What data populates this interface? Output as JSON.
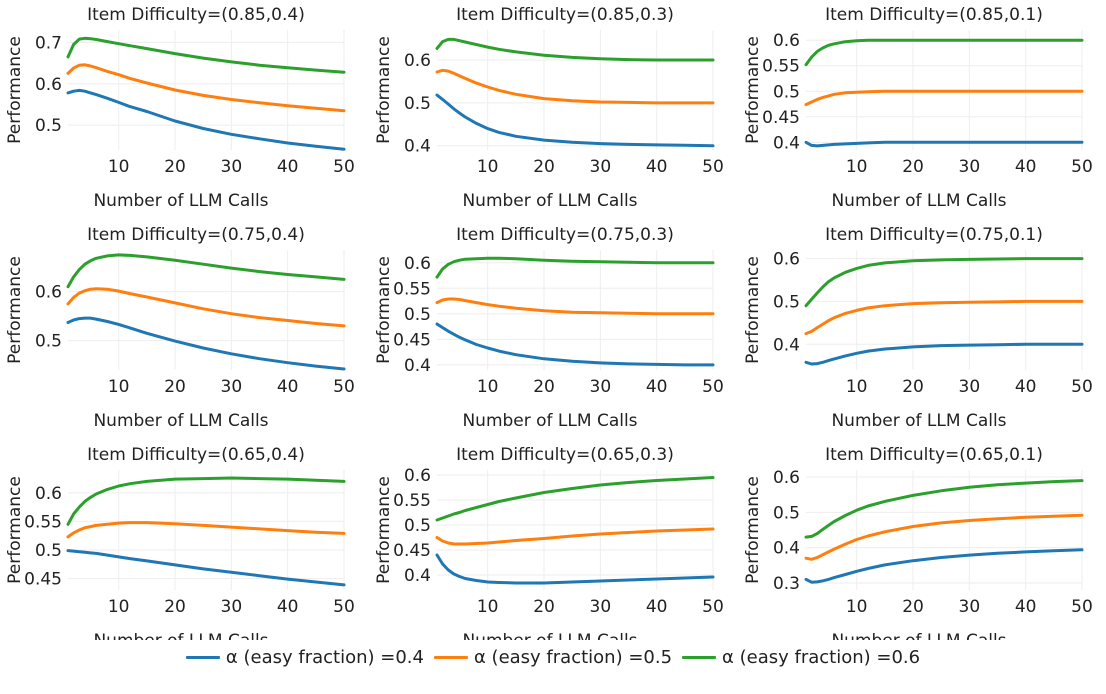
{
  "chart_data": [
    {
      "type": "line",
      "title": "Item Difficulty=(0.85,0.4)",
      "xlabel": "Number of LLM Calls",
      "ylabel": "Performance",
      "xlim": [
        1,
        50
      ],
      "ylim": [
        0.44,
        0.73
      ],
      "xticks": [
        10,
        20,
        30,
        40,
        50
      ],
      "yticks": [
        0.5,
        0.6,
        0.7
      ],
      "ytick_labels": [
        "0.5",
        "0.6",
        "0.7"
      ],
      "x": [
        1,
        2,
        3,
        4,
        5,
        6,
        8,
        10,
        12,
        15,
        20,
        25,
        30,
        35,
        40,
        45,
        50
      ],
      "series": [
        {
          "name": "α (easy fraction) =0.4",
          "values": [
            0.578,
            0.582,
            0.584,
            0.582,
            0.578,
            0.574,
            0.565,
            0.555,
            0.545,
            0.533,
            0.51,
            0.492,
            0.478,
            0.467,
            0.457,
            0.449,
            0.442
          ]
        },
        {
          "name": "α (easy fraction) =0.5",
          "values": [
            0.625,
            0.638,
            0.645,
            0.646,
            0.643,
            0.639,
            0.63,
            0.622,
            0.613,
            0.602,
            0.585,
            0.572,
            0.562,
            0.554,
            0.547,
            0.541,
            0.535
          ]
        },
        {
          "name": "α (easy fraction) =0.6",
          "values": [
            0.665,
            0.695,
            0.708,
            0.71,
            0.709,
            0.707,
            0.702,
            0.697,
            0.692,
            0.685,
            0.673,
            0.662,
            0.653,
            0.645,
            0.639,
            0.633,
            0.628
          ]
        }
      ]
    },
    {
      "type": "line",
      "title": "Item Difficulty=(0.85,0.3)",
      "xlabel": "Number of LLM Calls",
      "ylabel": "Performance",
      "xlim": [
        1,
        50
      ],
      "ylim": [
        0.39,
        0.67
      ],
      "xticks": [
        10,
        20,
        30,
        40,
        50
      ],
      "yticks": [
        0.4,
        0.5,
        0.6
      ],
      "ytick_labels": [
        "0.4",
        "0.5",
        "0.6"
      ],
      "x": [
        1,
        2,
        3,
        4,
        5,
        6,
        8,
        10,
        12,
        15,
        20,
        25,
        30,
        35,
        40,
        45,
        50
      ],
      "series": [
        {
          "name": "α (easy fraction) =0.4",
          "values": [
            0.518,
            0.508,
            0.497,
            0.486,
            0.476,
            0.467,
            0.452,
            0.44,
            0.431,
            0.422,
            0.413,
            0.408,
            0.405,
            0.403,
            0.402,
            0.401,
            0.4
          ]
        },
        {
          "name": "α (easy fraction) =0.5",
          "values": [
            0.572,
            0.576,
            0.574,
            0.569,
            0.563,
            0.557,
            0.546,
            0.537,
            0.529,
            0.52,
            0.51,
            0.505,
            0.502,
            0.501,
            0.5,
            0.5,
            0.5
          ]
        },
        {
          "name": "α (easy fraction) =0.6",
          "values": [
            0.627,
            0.643,
            0.648,
            0.648,
            0.645,
            0.642,
            0.636,
            0.63,
            0.625,
            0.619,
            0.611,
            0.606,
            0.603,
            0.601,
            0.6,
            0.6,
            0.6
          ]
        }
      ]
    },
    {
      "type": "line",
      "title": "Item Difficulty=(0.85,0.1)",
      "xlabel": "Number of LLM Calls",
      "ylabel": "Performance",
      "xlim": [
        1,
        50
      ],
      "ylim": [
        0.385,
        0.62
      ],
      "xticks": [
        10,
        20,
        30,
        40,
        50
      ],
      "yticks": [
        0.4,
        0.45,
        0.5,
        0.55,
        0.6
      ],
      "ytick_labels": [
        "0.4",
        "0.45",
        "0.5",
        "0.55",
        "0.6"
      ],
      "x": [
        1,
        2,
        3,
        4,
        5,
        6,
        8,
        10,
        12,
        15,
        20,
        25,
        30,
        35,
        40,
        45,
        50
      ],
      "series": [
        {
          "name": "α (easy fraction) =0.4",
          "values": [
            0.4,
            0.394,
            0.393,
            0.394,
            0.395,
            0.396,
            0.397,
            0.398,
            0.399,
            0.4,
            0.4,
            0.4,
            0.4,
            0.4,
            0.4,
            0.4,
            0.4
          ]
        },
        {
          "name": "α (easy fraction) =0.5",
          "values": [
            0.474,
            0.479,
            0.484,
            0.488,
            0.491,
            0.494,
            0.497,
            0.498,
            0.499,
            0.5,
            0.5,
            0.5,
            0.5,
            0.5,
            0.5,
            0.5,
            0.5
          ]
        },
        {
          "name": "α (easy fraction) =0.6",
          "values": [
            0.552,
            0.567,
            0.578,
            0.585,
            0.59,
            0.593,
            0.597,
            0.599,
            0.6,
            0.6,
            0.6,
            0.6,
            0.6,
            0.6,
            0.6,
            0.6,
            0.6
          ]
        }
      ]
    },
    {
      "type": "line",
      "title": "Item Difficulty=(0.75,0.4)",
      "xlabel": "Number of LLM Calls",
      "ylabel": "Performance",
      "xlim": [
        1,
        50
      ],
      "ylim": [
        0.44,
        0.685
      ],
      "xticks": [
        10,
        20,
        30,
        40,
        50
      ],
      "yticks": [
        0.5,
        0.6
      ],
      "ytick_labels": [
        "0.5",
        "0.6"
      ],
      "x": [
        1,
        2,
        3,
        4,
        5,
        6,
        8,
        10,
        12,
        15,
        20,
        25,
        30,
        35,
        40,
        45,
        50
      ],
      "series": [
        {
          "name": "α (easy fraction) =0.4",
          "values": [
            0.537,
            0.542,
            0.545,
            0.546,
            0.546,
            0.544,
            0.539,
            0.533,
            0.526,
            0.515,
            0.499,
            0.485,
            0.473,
            0.463,
            0.455,
            0.448,
            0.442
          ]
        },
        {
          "name": "α (easy fraction) =0.5",
          "values": [
            0.575,
            0.588,
            0.597,
            0.602,
            0.605,
            0.606,
            0.605,
            0.601,
            0.596,
            0.589,
            0.577,
            0.565,
            0.555,
            0.547,
            0.541,
            0.535,
            0.53
          ]
        },
        {
          "name": "α (easy fraction) =0.6",
          "values": [
            0.61,
            0.63,
            0.645,
            0.656,
            0.663,
            0.668,
            0.673,
            0.675,
            0.674,
            0.671,
            0.664,
            0.656,
            0.648,
            0.641,
            0.635,
            0.63,
            0.625
          ]
        }
      ]
    },
    {
      "type": "line",
      "title": "Item Difficulty=(0.75,0.3)",
      "xlabel": "Number of LLM Calls",
      "ylabel": "Performance",
      "xlim": [
        1,
        50
      ],
      "ylim": [
        0.39,
        0.625
      ],
      "xticks": [
        10,
        20,
        30,
        40,
        50
      ],
      "yticks": [
        0.4,
        0.45,
        0.5,
        0.55,
        0.6
      ],
      "ytick_labels": [
        "0.4",
        "0.45",
        "0.5",
        "0.55",
        "0.6"
      ],
      "x": [
        1,
        2,
        3,
        4,
        5,
        6,
        8,
        10,
        12,
        15,
        20,
        25,
        30,
        35,
        40,
        45,
        50
      ],
      "series": [
        {
          "name": "α (easy fraction) =0.4",
          "values": [
            0.48,
            0.473,
            0.466,
            0.46,
            0.454,
            0.449,
            0.44,
            0.433,
            0.427,
            0.42,
            0.412,
            0.407,
            0.404,
            0.402,
            0.401,
            0.4,
            0.4
          ]
        },
        {
          "name": "α (easy fraction) =0.5",
          "values": [
            0.522,
            0.527,
            0.529,
            0.529,
            0.528,
            0.526,
            0.522,
            0.518,
            0.515,
            0.511,
            0.506,
            0.503,
            0.502,
            0.501,
            0.5,
            0.5,
            0.5
          ]
        },
        {
          "name": "α (easy fraction) =0.6",
          "values": [
            0.572,
            0.588,
            0.597,
            0.602,
            0.605,
            0.607,
            0.608,
            0.609,
            0.609,
            0.608,
            0.605,
            0.603,
            0.602,
            0.601,
            0.6,
            0.6,
            0.6
          ]
        }
      ]
    },
    {
      "type": "line",
      "title": "Item Difficulty=(0.75,0.1)",
      "xlabel": "Number of LLM Calls",
      "ylabel": "Performance",
      "xlim": [
        1,
        50
      ],
      "ylim": [
        0.34,
        0.62
      ],
      "xticks": [
        10,
        20,
        30,
        40,
        50
      ],
      "yticks": [
        0.4,
        0.5,
        0.6
      ],
      "ytick_labels": [
        "0.4",
        "0.5",
        "0.6"
      ],
      "x": [
        1,
        2,
        3,
        4,
        5,
        6,
        8,
        10,
        12,
        15,
        20,
        25,
        30,
        35,
        40,
        45,
        50
      ],
      "series": [
        {
          "name": "α (easy fraction) =0.4",
          "values": [
            0.358,
            0.354,
            0.355,
            0.358,
            0.362,
            0.366,
            0.373,
            0.379,
            0.384,
            0.389,
            0.394,
            0.397,
            0.398,
            0.399,
            0.4,
            0.4,
            0.4
          ]
        },
        {
          "name": "α (easy fraction) =0.5",
          "values": [
            0.425,
            0.43,
            0.439,
            0.447,
            0.455,
            0.462,
            0.472,
            0.479,
            0.485,
            0.49,
            0.495,
            0.497,
            0.498,
            0.499,
            0.5,
            0.5,
            0.5
          ]
        },
        {
          "name": "α (easy fraction) =0.6",
          "values": [
            0.49,
            0.505,
            0.52,
            0.534,
            0.546,
            0.555,
            0.568,
            0.577,
            0.584,
            0.59,
            0.595,
            0.597,
            0.598,
            0.599,
            0.6,
            0.6,
            0.6
          ]
        }
      ]
    },
    {
      "type": "line",
      "title": "Item Difficulty=(0.65,0.4)",
      "xlabel": "Number of LLM Calls",
      "ylabel": "Performance",
      "xlim": [
        1,
        50
      ],
      "ylim": [
        0.43,
        0.64
      ],
      "xticks": [
        10,
        20,
        30,
        40,
        50
      ],
      "yticks": [
        0.45,
        0.5,
        0.55,
        0.6
      ],
      "ytick_labels": [
        "0.45",
        "0.5",
        "0.55",
        "0.6"
      ],
      "x": [
        1,
        2,
        3,
        4,
        5,
        6,
        8,
        10,
        12,
        15,
        20,
        25,
        30,
        35,
        40,
        45,
        50
      ],
      "series": [
        {
          "name": "α (easy fraction) =0.4",
          "values": [
            0.499,
            0.498,
            0.497,
            0.496,
            0.495,
            0.494,
            0.491,
            0.488,
            0.485,
            0.481,
            0.474,
            0.467,
            0.461,
            0.455,
            0.449,
            0.444,
            0.439
          ]
        },
        {
          "name": "α (easy fraction) =0.5",
          "values": [
            0.523,
            0.53,
            0.535,
            0.539,
            0.541,
            0.543,
            0.545,
            0.547,
            0.548,
            0.548,
            0.546,
            0.543,
            0.54,
            0.537,
            0.534,
            0.531,
            0.529
          ]
        },
        {
          "name": "α (easy fraction) =0.6",
          "values": [
            0.545,
            0.563,
            0.575,
            0.585,
            0.592,
            0.598,
            0.606,
            0.612,
            0.616,
            0.62,
            0.624,
            0.625,
            0.626,
            0.625,
            0.624,
            0.622,
            0.62
          ]
        }
      ]
    },
    {
      "type": "line",
      "title": "Item Difficulty=(0.65,0.3)",
      "xlabel": "Number of LLM Calls",
      "ylabel": "Performance",
      "xlim": [
        1,
        50
      ],
      "ylim": [
        0.37,
        0.61
      ],
      "xticks": [
        10,
        20,
        30,
        40,
        50
      ],
      "yticks": [
        0.4,
        0.45,
        0.5,
        0.55,
        0.6
      ],
      "ytick_labels": [
        "0.4",
        "0.45",
        "0.5",
        "0.55",
        "0.6"
      ],
      "x": [
        1,
        2,
        3,
        4,
        5,
        6,
        8,
        10,
        12,
        15,
        20,
        25,
        30,
        35,
        40,
        45,
        50
      ],
      "series": [
        {
          "name": "α (easy fraction) =0.4",
          "values": [
            0.44,
            0.422,
            0.41,
            0.402,
            0.397,
            0.393,
            0.389,
            0.386,
            0.385,
            0.384,
            0.384,
            0.386,
            0.388,
            0.39,
            0.392,
            0.394,
            0.396
          ]
        },
        {
          "name": "α (easy fraction) =0.5",
          "values": [
            0.475,
            0.468,
            0.464,
            0.462,
            0.462,
            0.462,
            0.463,
            0.464,
            0.466,
            0.469,
            0.473,
            0.478,
            0.482,
            0.485,
            0.488,
            0.49,
            0.492
          ]
        },
        {
          "name": "α (easy fraction) =0.6",
          "values": [
            0.51,
            0.514,
            0.518,
            0.522,
            0.525,
            0.529,
            0.535,
            0.541,
            0.547,
            0.554,
            0.565,
            0.573,
            0.58,
            0.585,
            0.589,
            0.592,
            0.595
          ]
        }
      ]
    },
    {
      "type": "line",
      "title": "Item Difficulty=(0.65,0.1)",
      "xlabel": "Number of LLM Calls",
      "ylabel": "Performance",
      "xlim": [
        1,
        50
      ],
      "ylim": [
        0.28,
        0.62
      ],
      "xticks": [
        10,
        20,
        30,
        40,
        50
      ],
      "yticks": [
        0.3,
        0.4,
        0.5,
        0.6
      ],
      "ytick_labels": [
        "0.3",
        "0.4",
        "0.5",
        "0.6"
      ],
      "x": [
        1,
        2,
        3,
        4,
        5,
        6,
        8,
        10,
        12,
        15,
        20,
        25,
        30,
        35,
        40,
        45,
        50
      ],
      "series": [
        {
          "name": "α (easy fraction) =0.4",
          "values": [
            0.31,
            0.302,
            0.303,
            0.306,
            0.31,
            0.315,
            0.324,
            0.333,
            0.341,
            0.351,
            0.363,
            0.372,
            0.379,
            0.384,
            0.388,
            0.391,
            0.394
          ]
        },
        {
          "name": "α (easy fraction) =0.5",
          "values": [
            0.37,
            0.367,
            0.372,
            0.38,
            0.388,
            0.396,
            0.41,
            0.423,
            0.433,
            0.445,
            0.46,
            0.47,
            0.477,
            0.482,
            0.486,
            0.489,
            0.492
          ]
        },
        {
          "name": "α (easy fraction) =0.6",
          "values": [
            0.43,
            0.432,
            0.44,
            0.452,
            0.463,
            0.474,
            0.491,
            0.506,
            0.518,
            0.531,
            0.548,
            0.561,
            0.571,
            0.578,
            0.583,
            0.587,
            0.59
          ]
        }
      ]
    }
  ],
  "legend": {
    "items": [
      {
        "label": "α (easy fraction) =0.4",
        "color": "#1f77b4"
      },
      {
        "label": "α (easy fraction) =0.5",
        "color": "#ff7f0e"
      },
      {
        "label": "α (easy fraction) =0.6",
        "color": "#2ca02c"
      }
    ]
  },
  "series_colors": [
    "#1f77b4",
    "#ff7f0e",
    "#2ca02c"
  ]
}
